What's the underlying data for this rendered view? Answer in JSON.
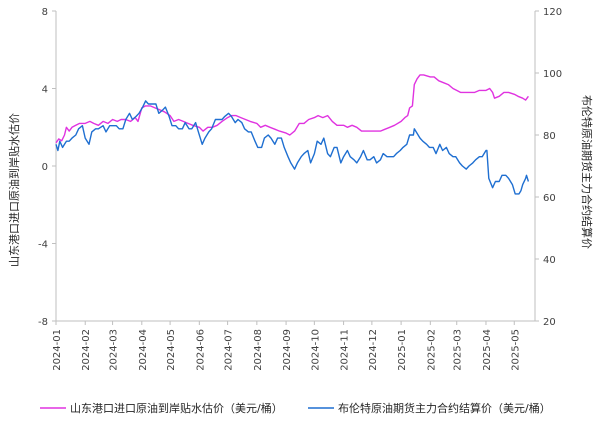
{
  "chart_data": {
    "type": "line",
    "x_ticks": [
      "2024-01",
      "2024-02",
      "2024-03",
      "2024-04",
      "2024-05",
      "2024-06",
      "2024-07",
      "2024-08",
      "2024-09",
      "2024-10",
      "2024-11",
      "2024-12",
      "2025-01",
      "2025-02",
      "2025-03",
      "2025-04",
      "2025-05"
    ],
    "y_left": {
      "label": "山东港口进口原油到岸贴水估价",
      "min": -8,
      "max": 8,
      "ticks": [
        -8,
        -4,
        0,
        4,
        8
      ]
    },
    "y_right": {
      "label": "布伦特原油期货主力合约结算价",
      "min": 20,
      "max": 120,
      "ticks": [
        20,
        40,
        60,
        80,
        100,
        120
      ]
    },
    "grid": "off",
    "legend_position": "bottom",
    "series": [
      {
        "name": "山东港口进口原油到岸贴水估价（美元/桶）",
        "axis": "left",
        "color": "#e033e0",
        "points": [
          [
            "2024-01-01",
            1.2
          ],
          [
            "2024-01-04",
            1.4
          ],
          [
            "2024-01-07",
            1.3
          ],
          [
            "2024-01-10",
            1.6
          ],
          [
            "2024-01-12",
            2.0
          ],
          [
            "2024-01-15",
            1.8
          ],
          [
            "2024-01-18",
            2.0
          ],
          [
            "2024-01-22",
            2.1
          ],
          [
            "2024-01-26",
            2.2
          ],
          [
            "2024-02-01",
            2.2
          ],
          [
            "2024-02-06",
            2.3
          ],
          [
            "2024-02-10",
            2.2
          ],
          [
            "2024-02-15",
            2.1
          ],
          [
            "2024-02-20",
            2.3
          ],
          [
            "2024-02-25",
            2.2
          ],
          [
            "2024-03-01",
            2.4
          ],
          [
            "2024-03-06",
            2.3
          ],
          [
            "2024-03-10",
            2.4
          ],
          [
            "2024-03-15",
            2.4
          ],
          [
            "2024-03-20",
            2.3
          ],
          [
            "2024-03-25",
            2.5
          ],
          [
            "2024-03-28",
            2.3
          ],
          [
            "2024-04-01",
            3.0
          ],
          [
            "2024-04-05",
            3.1
          ],
          [
            "2024-04-10",
            3.1
          ],
          [
            "2024-04-15",
            3.0
          ],
          [
            "2024-04-20",
            2.9
          ],
          [
            "2024-04-25",
            2.8
          ],
          [
            "2024-05-01",
            2.6
          ],
          [
            "2024-05-05",
            2.3
          ],
          [
            "2024-05-10",
            2.4
          ],
          [
            "2024-05-15",
            2.3
          ],
          [
            "2024-05-20",
            2.2
          ],
          [
            "2024-05-25",
            2.1
          ],
          [
            "2024-06-01",
            2.0
          ],
          [
            "2024-06-05",
            1.8
          ],
          [
            "2024-06-10",
            2.0
          ],
          [
            "2024-06-15",
            2.0
          ],
          [
            "2024-06-20",
            2.1
          ],
          [
            "2024-06-25",
            2.3
          ],
          [
            "2024-07-01",
            2.5
          ],
          [
            "2024-07-05",
            2.6
          ],
          [
            "2024-07-10",
            2.6
          ],
          [
            "2024-07-15",
            2.5
          ],
          [
            "2024-07-20",
            2.4
          ],
          [
            "2024-07-25",
            2.3
          ],
          [
            "2024-08-01",
            2.2
          ],
          [
            "2024-08-05",
            2.0
          ],
          [
            "2024-08-10",
            2.1
          ],
          [
            "2024-08-15",
            2.0
          ],
          [
            "2024-08-20",
            1.9
          ],
          [
            "2024-08-25",
            1.8
          ],
          [
            "2024-09-01",
            1.7
          ],
          [
            "2024-09-05",
            1.6
          ],
          [
            "2024-09-10",
            1.8
          ],
          [
            "2024-09-15",
            2.2
          ],
          [
            "2024-09-20",
            2.2
          ],
          [
            "2024-09-25",
            2.4
          ],
          [
            "2024-10-01",
            2.5
          ],
          [
            "2024-10-05",
            2.6
          ],
          [
            "2024-10-10",
            2.5
          ],
          [
            "2024-10-15",
            2.6
          ],
          [
            "2024-10-20",
            2.3
          ],
          [
            "2024-10-25",
            2.1
          ],
          [
            "2024-11-01",
            2.1
          ],
          [
            "2024-11-05",
            2.0
          ],
          [
            "2024-11-10",
            2.1
          ],
          [
            "2024-11-15",
            2.0
          ],
          [
            "2024-11-20",
            1.8
          ],
          [
            "2024-11-25",
            1.8
          ],
          [
            "2024-12-01",
            1.8
          ],
          [
            "2024-12-05",
            1.8
          ],
          [
            "2024-12-10",
            1.8
          ],
          [
            "2024-12-15",
            1.9
          ],
          [
            "2024-12-20",
            2.0
          ],
          [
            "2024-12-25",
            2.1
          ],
          [
            "2025-01-01",
            2.3
          ],
          [
            "2025-01-05",
            2.5
          ],
          [
            "2025-01-08",
            2.6
          ],
          [
            "2025-01-10",
            3.0
          ],
          [
            "2025-01-13",
            3.1
          ],
          [
            "2025-01-15",
            4.2
          ],
          [
            "2025-01-18",
            4.5
          ],
          [
            "2025-01-21",
            4.7
          ],
          [
            "2025-01-25",
            4.7
          ],
          [
            "2025-02-01",
            4.6
          ],
          [
            "2025-02-05",
            4.6
          ],
          [
            "2025-02-10",
            4.4
          ],
          [
            "2025-02-15",
            4.3
          ],
          [
            "2025-02-20",
            4.2
          ],
          [
            "2025-02-25",
            4.0
          ],
          [
            "2025-03-01",
            3.9
          ],
          [
            "2025-03-05",
            3.8
          ],
          [
            "2025-03-10",
            3.8
          ],
          [
            "2025-03-15",
            3.8
          ],
          [
            "2025-03-20",
            3.8
          ],
          [
            "2025-03-25",
            3.9
          ],
          [
            "2025-04-01",
            3.9
          ],
          [
            "2025-04-05",
            4.0
          ],
          [
            "2025-04-08",
            3.8
          ],
          [
            "2025-04-10",
            3.5
          ],
          [
            "2025-04-15",
            3.6
          ],
          [
            "2025-04-20",
            3.8
          ],
          [
            "2025-04-25",
            3.8
          ],
          [
            "2025-05-01",
            3.7
          ],
          [
            "2025-05-05",
            3.6
          ],
          [
            "2025-05-10",
            3.5
          ],
          [
            "2025-05-13",
            3.4
          ],
          [
            "2025-05-16",
            3.6
          ]
        ]
      },
      {
        "name": "布伦特原油期货主力合约结算价（美元/桶）",
        "axis": "right",
        "color": "#1f6fd1",
        "points": [
          [
            "2024-01-01",
            77
          ],
          [
            "2024-01-03",
            75
          ],
          [
            "2024-01-05",
            78
          ],
          [
            "2024-01-08",
            76
          ],
          [
            "2024-01-10",
            77
          ],
          [
            "2024-01-12",
            78
          ],
          [
            "2024-01-15",
            78
          ],
          [
            "2024-01-18",
            79
          ],
          [
            "2024-01-22",
            80
          ],
          [
            "2024-01-25",
            82
          ],
          [
            "2024-01-29",
            83
          ],
          [
            "2024-02-01",
            79
          ],
          [
            "2024-02-05",
            77
          ],
          [
            "2024-02-08",
            81
          ],
          [
            "2024-02-12",
            82
          ],
          [
            "2024-02-15",
            82
          ],
          [
            "2024-02-20",
            83
          ],
          [
            "2024-02-23",
            81
          ],
          [
            "2024-02-27",
            83
          ],
          [
            "2024-03-01",
            83
          ],
          [
            "2024-03-05",
            83
          ],
          [
            "2024-03-08",
            82
          ],
          [
            "2024-03-12",
            82
          ],
          [
            "2024-03-15",
            85
          ],
          [
            "2024-03-19",
            87
          ],
          [
            "2024-03-22",
            85
          ],
          [
            "2024-03-26",
            86
          ],
          [
            "2024-03-29",
            87
          ],
          [
            "2024-04-02",
            89
          ],
          [
            "2024-04-05",
            91
          ],
          [
            "2024-04-08",
            90
          ],
          [
            "2024-04-12",
            90
          ],
          [
            "2024-04-16",
            90
          ],
          [
            "2024-04-19",
            87
          ],
          [
            "2024-04-23",
            88
          ],
          [
            "2024-04-26",
            89
          ],
          [
            "2024-04-30",
            86
          ],
          [
            "2024-05-03",
            83
          ],
          [
            "2024-05-07",
            83
          ],
          [
            "2024-05-10",
            82
          ],
          [
            "2024-05-14",
            82
          ],
          [
            "2024-05-17",
            84
          ],
          [
            "2024-05-21",
            82
          ],
          [
            "2024-05-24",
            82
          ],
          [
            "2024-05-28",
            84
          ],
          [
            "2024-05-31",
            81
          ],
          [
            "2024-06-04",
            77
          ],
          [
            "2024-06-07",
            79
          ],
          [
            "2024-06-11",
            81
          ],
          [
            "2024-06-14",
            82
          ],
          [
            "2024-06-18",
            85
          ],
          [
            "2024-06-21",
            85
          ],
          [
            "2024-06-25",
            85
          ],
          [
            "2024-06-28",
            86
          ],
          [
            "2024-07-02",
            87
          ],
          [
            "2024-07-05",
            86
          ],
          [
            "2024-07-09",
            84
          ],
          [
            "2024-07-12",
            85
          ],
          [
            "2024-07-16",
            84
          ],
          [
            "2024-07-19",
            82
          ],
          [
            "2024-07-23",
            81
          ],
          [
            "2024-07-26",
            81
          ],
          [
            "2024-07-30",
            78
          ],
          [
            "2024-08-02",
            76
          ],
          [
            "2024-08-06",
            76
          ],
          [
            "2024-08-09",
            79
          ],
          [
            "2024-08-13",
            80
          ],
          [
            "2024-08-16",
            79
          ],
          [
            "2024-08-20",
            77
          ],
          [
            "2024-08-23",
            79
          ],
          [
            "2024-08-27",
            79
          ],
          [
            "2024-08-30",
            76
          ],
          [
            "2024-09-03",
            73
          ],
          [
            "2024-09-06",
            71
          ],
          [
            "2024-09-10",
            69
          ],
          [
            "2024-09-13",
            71
          ],
          [
            "2024-09-17",
            73
          ],
          [
            "2024-09-20",
            74
          ],
          [
            "2024-09-24",
            75
          ],
          [
            "2024-09-27",
            71
          ],
          [
            "2024-10-01",
            74
          ],
          [
            "2024-10-04",
            78
          ],
          [
            "2024-10-08",
            77
          ],
          [
            "2024-10-11",
            79
          ],
          [
            "2024-10-15",
            74
          ],
          [
            "2024-10-18",
            73
          ],
          [
            "2024-10-22",
            76
          ],
          [
            "2024-10-25",
            76
          ],
          [
            "2024-10-29",
            71
          ],
          [
            "2024-11-01",
            73
          ],
          [
            "2024-11-05",
            75
          ],
          [
            "2024-11-08",
            73
          ],
          [
            "2024-11-12",
            72
          ],
          [
            "2024-11-15",
            71
          ],
          [
            "2024-11-19",
            73
          ],
          [
            "2024-11-22",
            75
          ],
          [
            "2024-11-26",
            72
          ],
          [
            "2024-11-29",
            72
          ],
          [
            "2024-12-03",
            73
          ],
          [
            "2024-12-06",
            71
          ],
          [
            "2024-12-10",
            72
          ],
          [
            "2024-12-13",
            74
          ],
          [
            "2024-12-17",
            73
          ],
          [
            "2024-12-20",
            73
          ],
          [
            "2024-12-24",
            73
          ],
          [
            "2024-12-27",
            74
          ],
          [
            "2024-12-31",
            75
          ],
          [
            "2025-01-03",
            76
          ],
          [
            "2025-01-07",
            77
          ],
          [
            "2025-01-10",
            80
          ],
          [
            "2025-01-14",
            80
          ],
          [
            "2025-01-15",
            82
          ],
          [
            "2025-01-17",
            81
          ],
          [
            "2025-01-21",
            79
          ],
          [
            "2025-01-24",
            78
          ],
          [
            "2025-01-28",
            77
          ],
          [
            "2025-01-31",
            76
          ],
          [
            "2025-02-04",
            76
          ],
          [
            "2025-02-07",
            74
          ],
          [
            "2025-02-11",
            77
          ],
          [
            "2025-02-14",
            75
          ],
          [
            "2025-02-18",
            76
          ],
          [
            "2025-02-21",
            74
          ],
          [
            "2025-02-25",
            73
          ],
          [
            "2025-02-28",
            73
          ],
          [
            "2025-03-04",
            71
          ],
          [
            "2025-03-07",
            70
          ],
          [
            "2025-03-11",
            69
          ],
          [
            "2025-03-14",
            70
          ],
          [
            "2025-03-18",
            71
          ],
          [
            "2025-03-21",
            72
          ],
          [
            "2025-03-25",
            73
          ],
          [
            "2025-03-28",
            73
          ],
          [
            "2025-04-01",
            75
          ],
          [
            "2025-04-02",
            75
          ],
          [
            "2025-04-04",
            66
          ],
          [
            "2025-04-08",
            63
          ],
          [
            "2025-04-11",
            65
          ],
          [
            "2025-04-15",
            65
          ],
          [
            "2025-04-18",
            67
          ],
          [
            "2025-04-22",
            67
          ],
          [
            "2025-04-25",
            66
          ],
          [
            "2025-04-29",
            64
          ],
          [
            "2025-05-02",
            61
          ],
          [
            "2025-05-06",
            61
          ],
          [
            "2025-05-08",
            62
          ],
          [
            "2025-05-10",
            64
          ],
          [
            "2025-05-13",
            66
          ],
          [
            "2025-05-14",
            67
          ],
          [
            "2025-05-16",
            65
          ]
        ]
      }
    ]
  }
}
